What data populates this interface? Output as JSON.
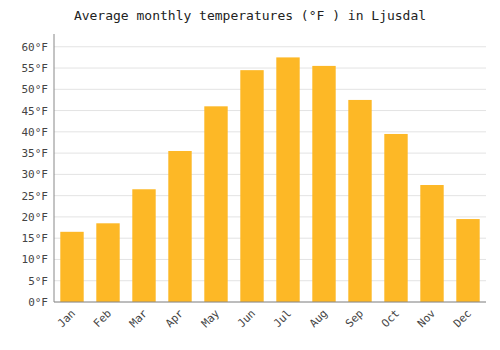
{
  "chart_data": {
    "type": "bar",
    "title": "Average monthly temperatures (°F ) in Ljusdal",
    "categories": [
      "Jan",
      "Feb",
      "Mar",
      "Apr",
      "May",
      "Jun",
      "Jul",
      "Aug",
      "Sep",
      "Oct",
      "Nov",
      "Dec"
    ],
    "values": [
      16.5,
      18.5,
      26.5,
      35.5,
      46.0,
      54.5,
      57.5,
      55.5,
      47.5,
      39.5,
      27.5,
      19.5
    ],
    "color": "#FDB826",
    "ylim": [
      0,
      63
    ],
    "yticks": [
      {
        "value": 0,
        "label": "0°F"
      },
      {
        "value": 5,
        "label": "5°F"
      },
      {
        "value": 10,
        "label": "10°F"
      },
      {
        "value": 15,
        "label": "15°F"
      },
      {
        "value": 20,
        "label": "20°F"
      },
      {
        "value": 25,
        "label": "25°F"
      },
      {
        "value": 30,
        "label": "30°F"
      },
      {
        "value": 35,
        "label": "35°F"
      },
      {
        "value": 40,
        "label": "40°F"
      },
      {
        "value": 45,
        "label": "45°F"
      },
      {
        "value": 50,
        "label": "50°F"
      },
      {
        "value": 55,
        "label": "55°F"
      },
      {
        "value": 60,
        "label": "60°F"
      }
    ],
    "grid": true
  }
}
